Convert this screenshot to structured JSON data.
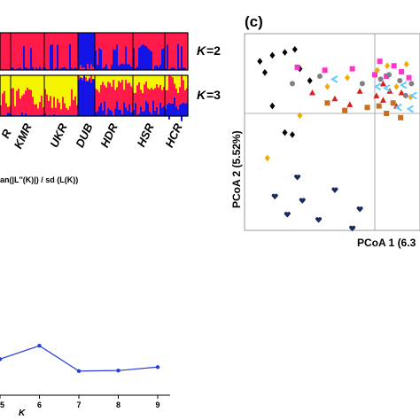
{
  "structure_panel": {
    "k_labels": {
      "k2": {
        "k": "K",
        "eq": "=2"
      },
      "k3": {
        "k": "K",
        "eq": "=3"
      }
    },
    "population_labels": [
      "KMR",
      "UKR",
      "DUB",
      "HDR",
      "HSR",
      "HCR"
    ],
    "partial_left_label": "R",
    "colors": {
      "cluster1": "#ff1a4a",
      "cluster2": "#1414e6",
      "cluster3": "#f5f500"
    },
    "k2_population_dominant": [
      {
        "pop": "KMR",
        "dominant": "cluster1"
      },
      {
        "pop": "UKR",
        "dominant": "cluster1"
      },
      {
        "pop": "DUB",
        "dominant": "cluster2"
      },
      {
        "pop": "HDR",
        "dominant": "cluster1"
      },
      {
        "pop": "HSR",
        "dominant": "cluster1"
      },
      {
        "pop": "HCR",
        "dominant": "cluster1"
      }
    ]
  },
  "delta_k_panel": {
    "ylabel": "an(|L''(K)|) / sd (L(K))",
    "xlabel": "K",
    "line_color": "#2b3fd6"
  },
  "pcoa_panel": {
    "panel_letter": "(c)",
    "xlabel": "PCoA 1 (6.3",
    "ylabel": "PCoA 2 (5.52%)",
    "group_colors": [
      "#000000",
      "#d62020",
      "#ff33cc",
      "#f2a900",
      "#808080",
      "#66ccff",
      "#c87020",
      "#1a2a5a"
    ]
  },
  "chart_data": [
    {
      "type": "bar",
      "subtype": "stacked admixture (STRUCTURE) plot",
      "k_values": [
        2,
        3
      ],
      "populations": [
        "KMR",
        "UKR",
        "DUB",
        "HDR",
        "HSR",
        "HCR"
      ],
      "series": [
        "cluster1",
        "cluster2",
        "cluster3"
      ]
    },
    {
      "type": "line",
      "x": [
        5,
        6,
        7,
        8,
        9
      ],
      "series": [
        {
          "values": [
            0.28,
            0.55,
            0.04,
            0.05,
            0.12
          ]
        }
      ],
      "xlabel": "K",
      "ylabel": "an(|L''(K)|) / sd (L(K))",
      "xticks": [
        "5",
        "6",
        "7",
        "8",
        "9"
      ]
    },
    {
      "type": "scatter",
      "title": "(c)",
      "xlabel": "PCoA 1 (6.3",
      "ylabel": "PCoA 2 (5.52%)",
      "xlim": [
        -1,
        1
      ],
      "ylim": [
        -1,
        1
      ],
      "series": [
        {
          "marker": "diamond",
          "color": "#000000",
          "points": [
            [
              -0.92,
              0.7
            ],
            [
              -0.82,
              0.78
            ],
            [
              -0.72,
              0.82
            ],
            [
              -0.64,
              0.86
            ],
            [
              -0.88,
              0.55
            ],
            [
              -0.6,
              0.6
            ],
            [
              -0.82,
              0.1
            ],
            [
              -0.72,
              -0.18
            ],
            [
              -0.66,
              -0.2
            ],
            [
              -0.52,
              0.44
            ]
          ]
        },
        {
          "marker": "triangle",
          "color": "#d62020",
          "points": [
            [
              -0.5,
              0.28
            ],
            [
              -0.32,
              0.2
            ],
            [
              -0.12,
              0.3
            ],
            [
              0.04,
              0.24
            ],
            [
              0.2,
              0.18
            ],
            [
              0.36,
              0.3
            ],
            [
              0.52,
              0.1
            ],
            [
              0.64,
              0.28
            ],
            [
              0.2,
              0.4
            ],
            [
              -0.2,
              0.12
            ]
          ]
        },
        {
          "marker": "square",
          "color": "#ff33cc",
          "points": [
            [
              -0.62,
              0.62
            ],
            [
              -0.4,
              0.58
            ],
            [
              -0.18,
              0.6
            ],
            [
              0.0,
              0.52
            ],
            [
              0.12,
              0.7
            ],
            [
              0.28,
              0.5
            ],
            [
              0.46,
              0.64
            ],
            [
              0.64,
              0.56
            ],
            [
              0.82,
              0.48
            ]
          ]
        },
        {
          "marker": "diamond",
          "color": "#f2a900",
          "points": [
            [
              -0.86,
              -0.42
            ],
            [
              -0.6,
              -0.02
            ],
            [
              -0.38,
              0.36
            ],
            [
              -0.22,
              0.48
            ],
            [
              0.06,
              0.58
            ],
            [
              0.3,
              0.64
            ],
            [
              0.52,
              0.36
            ],
            [
              0.76,
              0.66
            ],
            [
              0.86,
              0.22
            ]
          ]
        },
        {
          "marker": "circle",
          "color": "#808080",
          "points": [
            [
              -0.66,
              0.4
            ],
            [
              -0.44,
              0.5
            ],
            [
              -0.1,
              0.4
            ],
            [
              0.14,
              0.46
            ],
            [
              0.34,
              0.52
            ],
            [
              0.6,
              0.44
            ],
            [
              0.74,
              0.24
            ],
            [
              0.88,
              0.4
            ]
          ]
        },
        {
          "marker": "chevron",
          "color": "#66ccff",
          "points": [
            [
              -0.32,
              0.46
            ],
            [
              0.08,
              0.36
            ],
            [
              0.3,
              0.34
            ],
            [
              0.58,
              0.08
            ],
            [
              0.7,
              0.38
            ],
            [
              0.86,
              0.06
            ],
            [
              0.94,
              0.24
            ]
          ]
        },
        {
          "marker": "square",
          "color": "#c87020",
          "points": [
            [
              -0.38,
              0.14
            ],
            [
              -0.24,
              0.04
            ],
            [
              -0.06,
              0.08
            ],
            [
              0.1,
              0.1
            ],
            [
              0.28,
              0.0
            ],
            [
              0.44,
              0.14
            ],
            [
              0.62,
              -0.04
            ]
          ]
        },
        {
          "marker": "heart",
          "color": "#1a2a5a",
          "points": [
            [
              -0.8,
              -0.78
            ],
            [
              -0.7,
              -0.95
            ],
            [
              -0.58,
              -0.82
            ],
            [
              -0.45,
              -1.0
            ],
            [
              -0.32,
              -0.72
            ],
            [
              -0.12,
              -0.9
            ],
            [
              -0.62,
              -0.6
            ],
            [
              -0.18,
              -1.08
            ]
          ]
        }
      ]
    }
  ]
}
